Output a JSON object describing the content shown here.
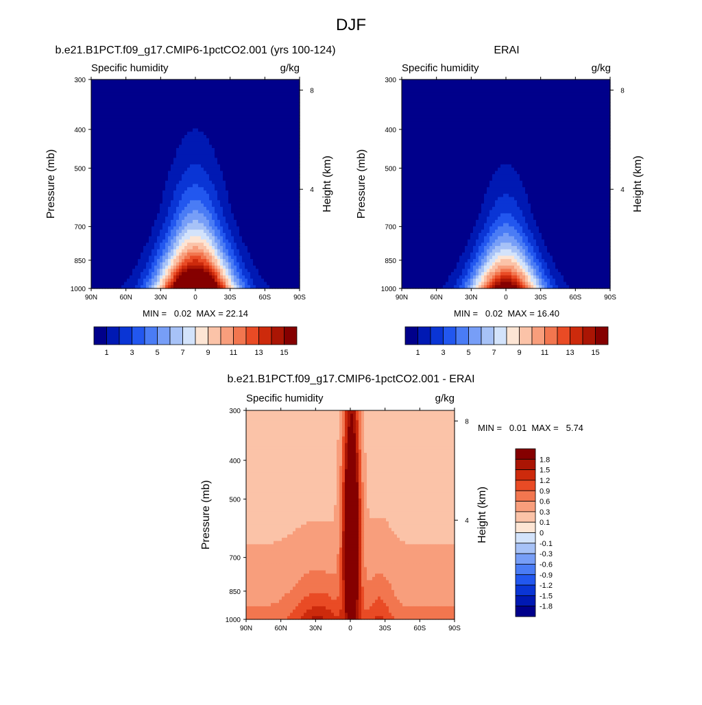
{
  "figure": {
    "title": "DJF"
  },
  "chart_data": [
    {
      "type": "heatmap",
      "id": "model",
      "title": "b.e21.B1PCT.f09_g17.CMIP6-1pctCO2.001 (yrs 100-124)",
      "left_label": "Specific humidity",
      "right_label": "g/kg",
      "ylabel": "Pressure (mb)",
      "y2label": "Height (km)",
      "x_ticks": [
        "90N",
        "60N",
        "30N",
        "0",
        "30S",
        "60S",
        "90S"
      ],
      "x_range": [
        90,
        -90
      ],
      "y_ticks": [
        300,
        400,
        500,
        700,
        850,
        1000
      ],
      "y_range": [
        300,
        1000
      ],
      "y_scale": "log",
      "y2_ticks": [
        8,
        4
      ],
      "stats": "MIN =   0.02  MAX = 22.14",
      "levels": [
        1,
        2,
        3,
        4,
        5,
        6,
        7,
        8,
        9,
        10,
        11,
        12,
        13,
        14,
        15
      ],
      "colorbar_labels": [
        "1",
        "3",
        "5",
        "7",
        "9",
        "11",
        "13",
        "15"
      ],
      "colorbar_orientation": "horizontal",
      "field": {
        "surface_peak": 22.14,
        "center_lat": 0,
        "min": 0.02,
        "max": 22.14
      }
    },
    {
      "type": "heatmap",
      "id": "obs",
      "title": "ERAI",
      "left_label": "Specific humidity",
      "right_label": "g/kg",
      "ylabel": "Pressure (mb)",
      "y2label": "Height (km)",
      "x_ticks": [
        "90N",
        "60N",
        "30N",
        "0",
        "30S",
        "60S",
        "90S"
      ],
      "x_range": [
        90,
        -90
      ],
      "y_ticks": [
        300,
        400,
        500,
        700,
        850,
        1000
      ],
      "y_range": [
        300,
        1000
      ],
      "y_scale": "log",
      "y2_ticks": [
        8,
        4
      ],
      "stats": "MIN =   0.02  MAX = 16.40",
      "levels": [
        1,
        2,
        3,
        4,
        5,
        6,
        7,
        8,
        9,
        10,
        11,
        12,
        13,
        14,
        15
      ],
      "colorbar_labels": [
        "1",
        "3",
        "5",
        "7",
        "9",
        "11",
        "13",
        "15"
      ],
      "colorbar_orientation": "horizontal",
      "field": {
        "surface_peak": 16.4,
        "center_lat": 0,
        "min": 0.02,
        "max": 16.4
      }
    },
    {
      "type": "heatmap",
      "id": "diff",
      "title": "b.e21.B1PCT.f09_g17.CMIP6-1pctCO2.001 - ERAI",
      "left_label": "Specific humidity",
      "right_label": "g/kg",
      "ylabel": "Pressure (mb)",
      "y2label": "Height (km)",
      "x_ticks": [
        "90N",
        "60N",
        "30N",
        "0",
        "30S",
        "60S",
        "90S"
      ],
      "x_range": [
        90,
        -90
      ],
      "y_ticks": [
        300,
        400,
        500,
        700,
        850,
        1000
      ],
      "y_range": [
        300,
        1000
      ],
      "y_scale": "log",
      "y2_ticks": [
        8,
        4
      ],
      "stats": "MIN =   0.01  MAX =   5.74",
      "levels": [
        -1.8,
        -1.5,
        -1.2,
        -0.9,
        -0.6,
        -0.3,
        -0.1,
        0,
        0.1,
        0.3,
        0.6,
        0.9,
        1.2,
        1.5,
        1.8
      ],
      "colorbar_labels": [
        "1.8",
        "1.5",
        "1.2",
        "0.9",
        "0.6",
        "0.3",
        "0.1",
        "0",
        "-0.1",
        "-0.3",
        "-0.6",
        "-0.9",
        "-1.2",
        "-1.5",
        "-1.8"
      ],
      "colorbar_orientation": "vertical",
      "field": {
        "min": 0.01,
        "max": 5.74
      }
    }
  ],
  "colors": {
    "seq": [
      "#00008b",
      "#0019b3",
      "#0a35d5",
      "#2257ef",
      "#4a7cf5",
      "#779ef7",
      "#a7c2f7",
      "#d3e3fb",
      "#fde5d4",
      "#fbc3a8",
      "#f89e7c",
      "#f2764f",
      "#e94b25",
      "#cd2a0c",
      "#aa1504",
      "#850000"
    ],
    "diff": [
      "#00008b",
      "#0019b3",
      "#0a35d5",
      "#2257ef",
      "#4a7cf5",
      "#779ef7",
      "#a7c2f7",
      "#d3e3fb",
      "#fde5d4",
      "#fbc3a8",
      "#f89e7c",
      "#f2764f",
      "#e94b25",
      "#cd2a0c",
      "#aa1504",
      "#850000"
    ],
    "axis": "#000000",
    "background": "#ffffff"
  }
}
